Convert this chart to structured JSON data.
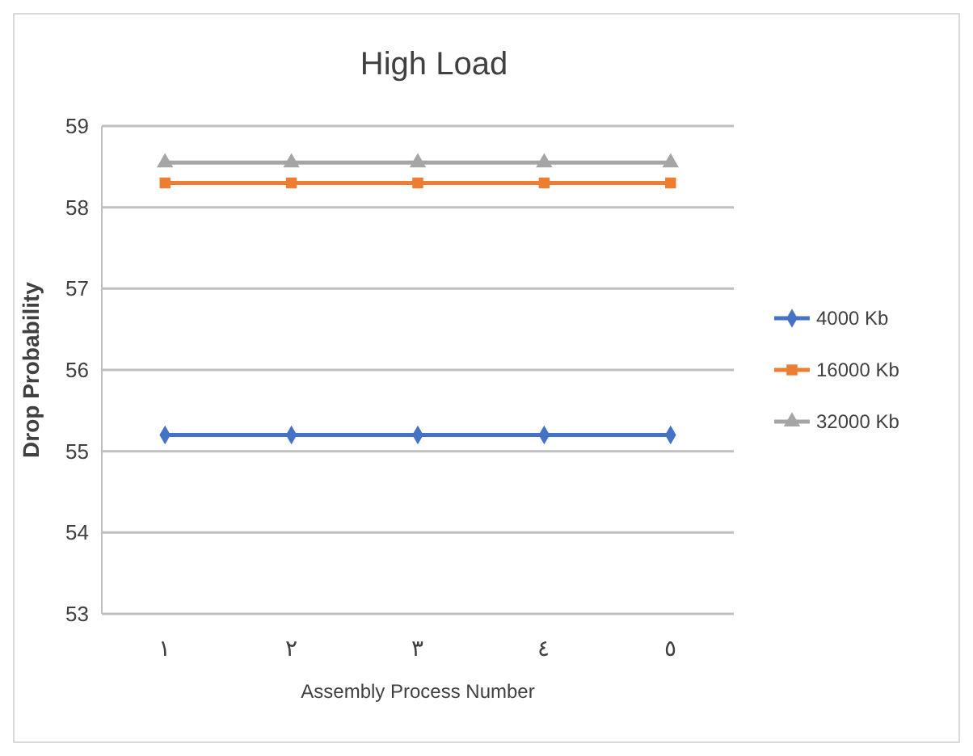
{
  "chart_data": {
    "type": "line",
    "title": "High Load",
    "xlabel": "Assembly Process Number",
    "ylabel": "Drop Probability",
    "categories": [
      "١",
      "٢",
      "٣",
      "٤",
      "٥"
    ],
    "series": [
      {
        "name": "4000 Kb",
        "color": "#4472c4",
        "marker": "diamond",
        "values": [
          55.2,
          55.2,
          55.2,
          55.2,
          55.2
        ]
      },
      {
        "name": "16000 Kb",
        "color": "#ed7d31",
        "marker": "square",
        "values": [
          58.3,
          58.3,
          58.3,
          58.3,
          58.3
        ]
      },
      {
        "name": "32000 Kb",
        "color": "#a5a5a5",
        "marker": "triangle",
        "values": [
          58.55,
          58.55,
          58.55,
          58.55,
          58.55
        ]
      }
    ],
    "ylim": [
      53,
      59
    ],
    "yticks": [
      53,
      54,
      55,
      56,
      57,
      58,
      59
    ],
    "grid": "y",
    "legend": "right"
  }
}
